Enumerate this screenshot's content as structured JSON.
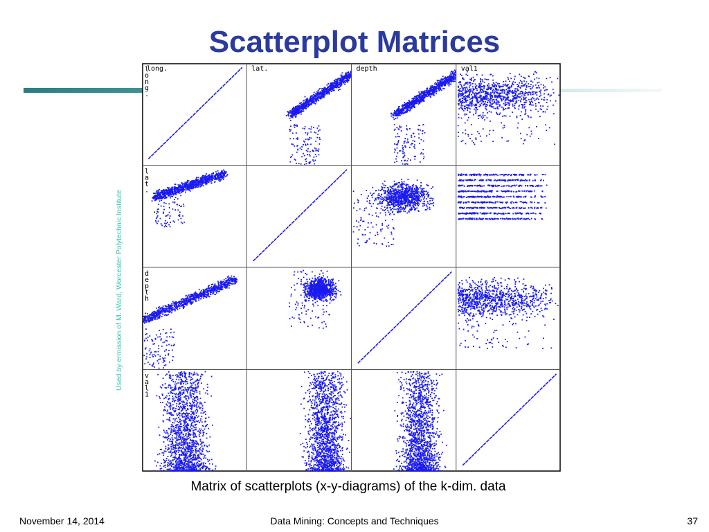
{
  "slide": {
    "title": "Scatterplot Matrices",
    "caption": "Matrix of scatterplots (x-y-diagrams) of the k-dim. data",
    "side_credit": "Used by ermission of M. Ward, Worcester Polytechnic Institute",
    "footer": {
      "date": "November 14, 2014",
      "course": "Data Mining: Concepts and Techniques",
      "page": "37"
    }
  },
  "colors": {
    "title": "#2b3a9e",
    "points": "#1a1af0",
    "grid": "#000000",
    "credit": "#2fc9b6",
    "accent_bar": "#2b7e7f"
  },
  "chart_data": {
    "type": "scatter",
    "layout": "scatterplot-matrix",
    "variables": [
      "long.",
      "lat.",
      "depth",
      "val1"
    ],
    "column_labels": [
      "long.",
      "lat.",
      "depth",
      "val1"
    ],
    "row_labels": [
      "long.",
      "lat.",
      "depth",
      "val1"
    ],
    "axis_range": [
      0,
      1
    ],
    "diagonal": "identity",
    "point_color": "#1a1af0",
    "panels": [
      {
        "row": 0,
        "col": 1,
        "trend": "positive",
        "x_range": [
          0.4,
          1.0
        ],
        "y_range": [
          0.0,
          1.0
        ]
      },
      {
        "row": 0,
        "col": 2,
        "trend": "positive",
        "x_range": [
          0.4,
          1.0
        ],
        "y_range": [
          0.0,
          1.0
        ]
      },
      {
        "row": 0,
        "col": 3,
        "trend": "none",
        "x_range": [
          0.0,
          1.0
        ],
        "y_range": [
          0.4,
          1.0
        ]
      },
      {
        "row": 1,
        "col": 0,
        "trend": "positive",
        "x_range": [
          0.1,
          0.8
        ],
        "y_range": [
          0.4,
          1.0
        ]
      },
      {
        "row": 1,
        "col": 2,
        "trend": "cluster",
        "x_range": [
          0.0,
          1.0
        ],
        "y_range": [
          0.2,
          1.0
        ]
      },
      {
        "row": 1,
        "col": 3,
        "trend": "bands",
        "x_range": [
          0.0,
          1.0
        ],
        "y_range": [
          0.4,
          1.0
        ]
      },
      {
        "row": 2,
        "col": 0,
        "trend": "positive",
        "x_range": [
          0.0,
          0.9
        ],
        "y_range": [
          0.0,
          1.0
        ]
      },
      {
        "row": 2,
        "col": 1,
        "trend": "cluster",
        "x_range": [
          0.4,
          1.0
        ],
        "y_range": [
          0.4,
          1.0
        ]
      },
      {
        "row": 2,
        "col": 3,
        "trend": "none",
        "x_range": [
          0.0,
          1.0
        ],
        "y_range": [
          0.4,
          1.0
        ]
      },
      {
        "row": 3,
        "col": 0,
        "trend": "vertical",
        "x_range": [
          0.1,
          0.7
        ],
        "y_range": [
          0.0,
          1.0
        ]
      },
      {
        "row": 3,
        "col": 1,
        "trend": "vertical",
        "x_range": [
          0.5,
          1.0
        ],
        "y_range": [
          0.0,
          1.0
        ]
      },
      {
        "row": 3,
        "col": 2,
        "trend": "vertical",
        "x_range": [
          0.4,
          0.9
        ],
        "y_range": [
          0.0,
          1.0
        ]
      }
    ]
  }
}
